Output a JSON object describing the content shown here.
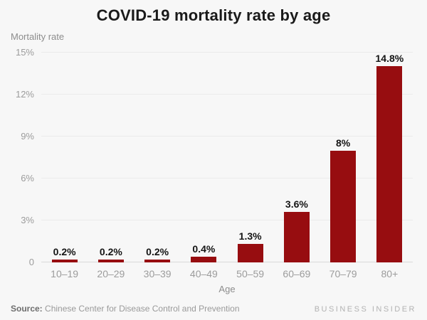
{
  "header": {
    "title": "COVID-19 mortality rate by age"
  },
  "chart_data": {
    "type": "bar",
    "title": "COVID-19 mortality rate by age",
    "ylabel": "Mortality rate",
    "xlabel": "Age",
    "categories": [
      "10–19",
      "20–29",
      "30–39",
      "40–49",
      "50–59",
      "60–69",
      "70–79",
      "80+"
    ],
    "values": [
      0.2,
      0.2,
      0.2,
      0.4,
      1.3,
      3.6,
      8,
      14.8
    ],
    "value_labels": [
      "0.2%",
      "0.2%",
      "0.2%",
      "0.4%",
      "1.3%",
      "3.6%",
      "8%",
      "14.8%"
    ],
    "yticks": [
      {
        "value": 15,
        "label": "15%"
      },
      {
        "value": 12,
        "label": "12%"
      },
      {
        "value": 9,
        "label": "9%"
      },
      {
        "value": 6,
        "label": "6%"
      },
      {
        "value": 3,
        "label": "3%"
      },
      {
        "value": 0,
        "label": "0"
      }
    ],
    "ylim": [
      0,
      15
    ],
    "grid": true,
    "legend": "none",
    "bar_color": "#970d10"
  },
  "footer": {
    "source_prefix": "Source:",
    "source_text": " Chinese Center for Disease Control and Prevention",
    "branding": "BUSINESS INSIDER"
  }
}
